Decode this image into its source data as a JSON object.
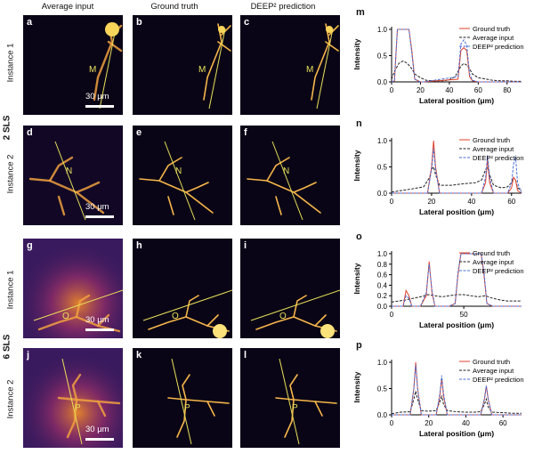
{
  "columns": [
    "Average input",
    "Ground truth",
    "DEEP² prediction"
  ],
  "groups": [
    "2 SLS",
    "6 SLS"
  ],
  "instances": [
    "Instance 1",
    "Instance 2",
    "Instance 1",
    "Instance 2"
  ],
  "panel_letters": [
    "a",
    "b",
    "c",
    "d",
    "e",
    "f",
    "g",
    "h",
    "i",
    "j",
    "k",
    "l"
  ],
  "line_tags": [
    "M",
    "N",
    "O",
    "P"
  ],
  "scale_label": "30 μm",
  "plot_letters": [
    "m",
    "n",
    "o",
    "p"
  ],
  "legend": [
    "Ground truth",
    "Average input",
    "DEEP² prediction"
  ],
  "colors": {
    "ground_truth": "#e0402a",
    "average_input": "#222222",
    "prediction": "#4a6fd8",
    "line_tag": "#e8e05a"
  },
  "chart_data": [
    {
      "type": "line",
      "title": "",
      "xlabel": "Lateral position (μm)",
      "ylabel": "Intensity",
      "xlim": [
        0,
        90
      ],
      "ylim": [
        0,
        1.05
      ],
      "xticks": [
        0,
        20,
        40,
        60,
        80
      ],
      "yticks": [
        0.0,
        0.5,
        1.0
      ],
      "series": [
        {
          "name": "Ground truth",
          "x": [
            0,
            2,
            4,
            12,
            14,
            16,
            20,
            22,
            46,
            48,
            50,
            52,
            54,
            56,
            60,
            90
          ],
          "y": [
            0,
            0.02,
            1.0,
            1.0,
            0.6,
            0.05,
            0,
            0,
            0.05,
            0.6,
            0.65,
            0.6,
            0.1,
            0.02,
            0,
            0
          ]
        },
        {
          "name": "Average input",
          "x": [
            0,
            2,
            5,
            8,
            11,
            14,
            16,
            20,
            24,
            30,
            36,
            40,
            44,
            46,
            48,
            50,
            52,
            54,
            56,
            60,
            66,
            70,
            76,
            80,
            86,
            90
          ],
          "y": [
            0.05,
            0.2,
            0.35,
            0.4,
            0.35,
            0.25,
            0.15,
            0.08,
            0.03,
            0.02,
            0.02,
            0.04,
            0.1,
            0.2,
            0.3,
            0.35,
            0.32,
            0.25,
            0.15,
            0.08,
            0.05,
            0.03,
            0.02,
            0.02,
            0.01,
            0.01
          ]
        },
        {
          "name": "DEEP² prediction",
          "x": [
            0,
            2,
            4,
            12,
            14,
            16,
            20,
            22,
            46,
            48,
            50,
            52,
            54,
            56,
            60,
            90
          ],
          "y": [
            0,
            0.02,
            1.0,
            1.0,
            0.55,
            0.05,
            0,
            0,
            0.1,
            0.72,
            0.8,
            0.7,
            0.15,
            0.03,
            0,
            0
          ]
        }
      ]
    },
    {
      "type": "line",
      "title": "",
      "xlabel": "Lateral position (μm)",
      "ylabel": "Intensity",
      "xlim": [
        0,
        65
      ],
      "ylim": [
        0,
        1.05
      ],
      "xticks": [
        0,
        20,
        40,
        60
      ],
      "yticks": [
        0.0,
        0.5,
        1.0
      ],
      "series": [
        {
          "name": "Ground truth",
          "x": [
            0,
            18,
            20,
            21,
            22,
            24,
            45,
            47,
            48,
            49,
            51,
            58,
            60,
            61,
            62,
            63,
            65
          ],
          "y": [
            0,
            0,
            0.5,
            1.0,
            0.5,
            0,
            0,
            0.2,
            0.65,
            0.2,
            0,
            0,
            0.1,
            0.3,
            0.25,
            0.05,
            0
          ]
        },
        {
          "name": "Average input",
          "x": [
            0,
            5,
            10,
            16,
            19,
            20,
            21,
            22,
            24,
            30,
            36,
            42,
            45,
            47,
            48,
            49,
            51,
            55,
            58,
            60,
            61,
            62,
            63,
            65
          ],
          "y": [
            0.02,
            0.05,
            0.08,
            0.12,
            0.3,
            0.45,
            0.5,
            0.35,
            0.15,
            0.15,
            0.18,
            0.2,
            0.25,
            0.45,
            0.5,
            0.35,
            0.15,
            0.1,
            0.12,
            0.2,
            0.3,
            0.25,
            0.1,
            0.05
          ]
        },
        {
          "name": "DEEP² prediction",
          "x": [
            0,
            18,
            20,
            21,
            22,
            24,
            45,
            47,
            48,
            49,
            51,
            58,
            60,
            61,
            62,
            63,
            65
          ],
          "y": [
            0,
            0,
            0.45,
            0.85,
            0.45,
            0,
            0,
            0.3,
            0.72,
            0.3,
            0,
            0,
            0.2,
            0.55,
            0.7,
            0.2,
            0
          ]
        }
      ]
    },
    {
      "type": "line",
      "title": "",
      "xlabel": "Lateral position (μm)",
      "ylabel": "Intensity",
      "xlim": [
        0,
        90
      ],
      "ylim": [
        0,
        1.05
      ],
      "xticks": [
        0,
        50
      ],
      "yticks": [
        0.0,
        0.2,
        0.4,
        0.6,
        0.8,
        1.0
      ],
      "series": [
        {
          "name": "Ground truth",
          "x": [
            0,
            8,
            10,
            12,
            14,
            20,
            24,
            26,
            28,
            30,
            40,
            44,
            46,
            48,
            62,
            64,
            66,
            70,
            90
          ],
          "y": [
            0,
            0,
            0.3,
            0.2,
            0,
            0,
            0.2,
            0.85,
            0.25,
            0,
            0,
            0.05,
            0.6,
            1.0,
            1.0,
            0.6,
            0.05,
            0,
            0
          ]
        },
        {
          "name": "Average input",
          "x": [
            0,
            5,
            10,
            15,
            20,
            25,
            30,
            35,
            40,
            45,
            50,
            55,
            60,
            65,
            70,
            75,
            80,
            85,
            90
          ],
          "y": [
            0.08,
            0.1,
            0.12,
            0.15,
            0.18,
            0.22,
            0.2,
            0.18,
            0.2,
            0.22,
            0.22,
            0.2,
            0.18,
            0.2,
            0.15,
            0.12,
            0.1,
            0.1,
            0.1
          ]
        },
        {
          "name": "DEEP² prediction",
          "x": [
            0,
            8,
            10,
            12,
            14,
            20,
            24,
            26,
            28,
            30,
            40,
            44,
            46,
            48,
            62,
            64,
            66,
            70,
            90
          ],
          "y": [
            0,
            0,
            0.2,
            0.15,
            0,
            0,
            0.25,
            0.8,
            0.3,
            0,
            0,
            0.05,
            0.65,
            1.0,
            1.0,
            0.65,
            0.05,
            0,
            0
          ]
        }
      ]
    },
    {
      "type": "line",
      "title": "",
      "xlabel": "Lateral position (μm)",
      "ylabel": "Intensity",
      "xlim": [
        0,
        70
      ],
      "ylim": [
        0,
        1.05
      ],
      "xticks": [
        0,
        20,
        40,
        60
      ],
      "yticks": [
        0.0,
        0.5,
        1.0
      ],
      "series": [
        {
          "name": "Ground truth",
          "x": [
            0,
            10,
            12,
            13,
            14,
            16,
            24,
            26,
            27,
            28,
            30,
            48,
            50,
            51,
            52,
            54,
            70
          ],
          "y": [
            0,
            0,
            0.5,
            1.0,
            0.5,
            0,
            0,
            0.35,
            0.7,
            0.35,
            0,
            0,
            0.3,
            0.55,
            0.3,
            0,
            0
          ]
        },
        {
          "name": "Average input",
          "x": [
            0,
            5,
            10,
            12,
            13,
            14,
            16,
            20,
            24,
            26,
            27,
            28,
            30,
            35,
            40,
            45,
            48,
            50,
            51,
            52,
            54,
            60,
            65,
            70
          ],
          "y": [
            0.02,
            0.05,
            0.06,
            0.3,
            0.45,
            0.3,
            0.08,
            0.07,
            0.08,
            0.25,
            0.35,
            0.2,
            0.08,
            0.06,
            0.05,
            0.05,
            0.06,
            0.2,
            0.3,
            0.15,
            0.05,
            0.04,
            0.03,
            0.03
          ]
        },
        {
          "name": "DEEP² prediction",
          "x": [
            0,
            10,
            12,
            13,
            14,
            16,
            24,
            26,
            27,
            28,
            30,
            48,
            50,
            51,
            52,
            54,
            70
          ],
          "y": [
            0,
            0,
            0.5,
            0.95,
            0.5,
            0,
            0,
            0.4,
            0.75,
            0.4,
            0,
            0,
            0.3,
            0.55,
            0.3,
            0,
            0
          ]
        }
      ]
    }
  ]
}
